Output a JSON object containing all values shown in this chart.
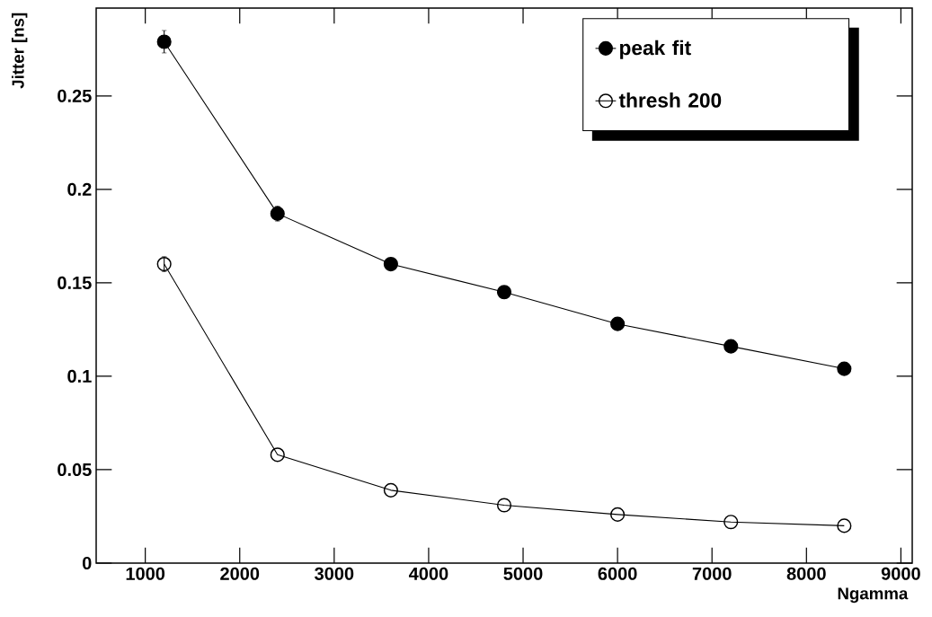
{
  "chart_data": {
    "type": "line",
    "xlabel": "Ngamma",
    "ylabel": "Jitter [ns]",
    "x": [
      1200,
      2400,
      3600,
      4800,
      6000,
      7200,
      8400
    ],
    "series": [
      {
        "name": "peak fit",
        "color": "#000000",
        "marker": "circle",
        "values": [
          0.279,
          0.187,
          0.16,
          0.145,
          0.128,
          0.116,
          0.104
        ],
        "errors": [
          0.006,
          0.004,
          null,
          null,
          null,
          null,
          null
        ]
      },
      {
        "name": "thresh 200",
        "color": "#000000",
        "marker": "circle",
        "values": [
          0.16,
          0.058,
          0.039,
          0.031,
          0.026,
          0.022,
          0.02
        ],
        "errors": [
          0.004,
          null,
          null,
          null,
          null,
          null,
          null
        ]
      }
    ],
    "xlim": [
      480,
      9120
    ],
    "ylim": [
      0,
      0.297
    ],
    "xticks": [
      1000,
      2000,
      3000,
      4000,
      5000,
      6000,
      7000,
      8000,
      9000
    ],
    "yticks": [
      0,
      0.05,
      0.1,
      0.15,
      0.2,
      0.25
    ],
    "legend": "top right",
    "grid": false,
    "line_style": "solid"
  }
}
